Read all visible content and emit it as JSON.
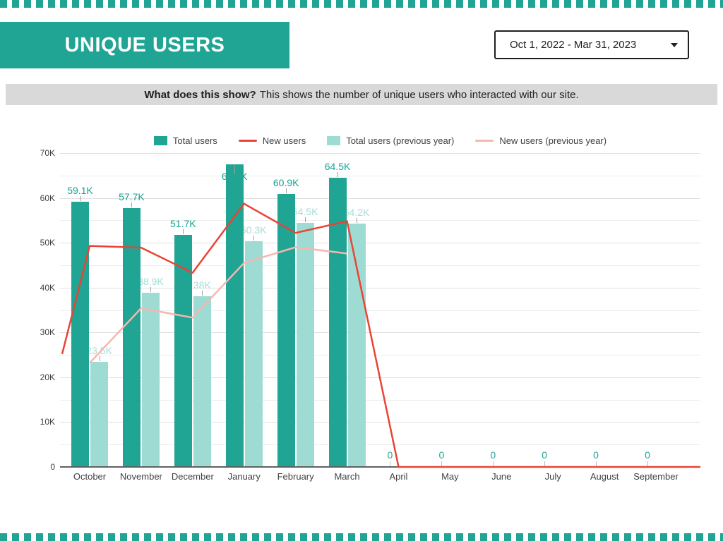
{
  "header": {
    "title": "UNIQUE USERS",
    "date_range": "Oct 1, 2022 - Mar 31, 2023"
  },
  "caption": {
    "bold": "What does this show?",
    "text": "This shows the number of unique users who interacted with our site."
  },
  "colors": {
    "teal": "#20A494",
    "teal_light": "#9EDBD3",
    "red": "#E94436",
    "pink": "#F5B7B0",
    "bar_label_dark": "#17A295",
    "bar_label_light": "#A8DCD6",
    "zero_label": "#26A69A",
    "gridline_major": "#E0E0E0",
    "gridline_minor": "#EEEEEE",
    "caption_bg": "#D9D9D9"
  },
  "chart_data": {
    "type": "combo (bar + line)",
    "categories": [
      "October",
      "November",
      "December",
      "January",
      "February",
      "March",
      "April",
      "May",
      "June",
      "July",
      "August",
      "September"
    ],
    "y_axis": {
      "min": 0,
      "max": 70000,
      "tick_labels": [
        "0",
        "10K",
        "20K",
        "30K",
        "40K",
        "50K",
        "60K",
        "70K"
      ],
      "gridline_step": 5000
    },
    "legend_position": "top",
    "series": [
      {
        "name": "Total users",
        "type": "bar",
        "color": "#20A494",
        "values": [
          59100,
          57700,
          51700,
          67500,
          60900,
          64500,
          0,
          0,
          0,
          0,
          0,
          0
        ],
        "data_labels": [
          "59.1K",
          "57.7K",
          "51.7K",
          "67.5K",
          "60.9K",
          "64.5K",
          "0",
          "0",
          "0",
          "0",
          "0",
          "0"
        ],
        "note": "January label is mostly hidden behind its own bar"
      },
      {
        "name": "New users",
        "type": "line",
        "color": "#E94436",
        "values": [
          49300,
          48900,
          43300,
          58700,
          52200,
          54800,
          0,
          0,
          0,
          0,
          0,
          0
        ],
        "clipped_edge_start_value": 25200,
        "extends_to_plot_edges": true
      },
      {
        "name": "Total users (previous year)",
        "type": "bar",
        "color": "#9EDBD3",
        "values": [
          23500,
          38900,
          38000,
          50300,
          54500,
          54200,
          null,
          null,
          null,
          null,
          null,
          null
        ],
        "data_labels": [
          "23.5K",
          "38.9K",
          "38K",
          "50.3K",
          "54.5K",
          "54.2K",
          null,
          null,
          null,
          null,
          null,
          null
        ]
      },
      {
        "name": "New users (previous year)",
        "type": "line",
        "color": "#F5B7B0",
        "values": [
          23200,
          35400,
          33300,
          45500,
          49000,
          47600,
          null,
          null,
          null,
          null,
          null,
          null
        ]
      }
    ]
  }
}
